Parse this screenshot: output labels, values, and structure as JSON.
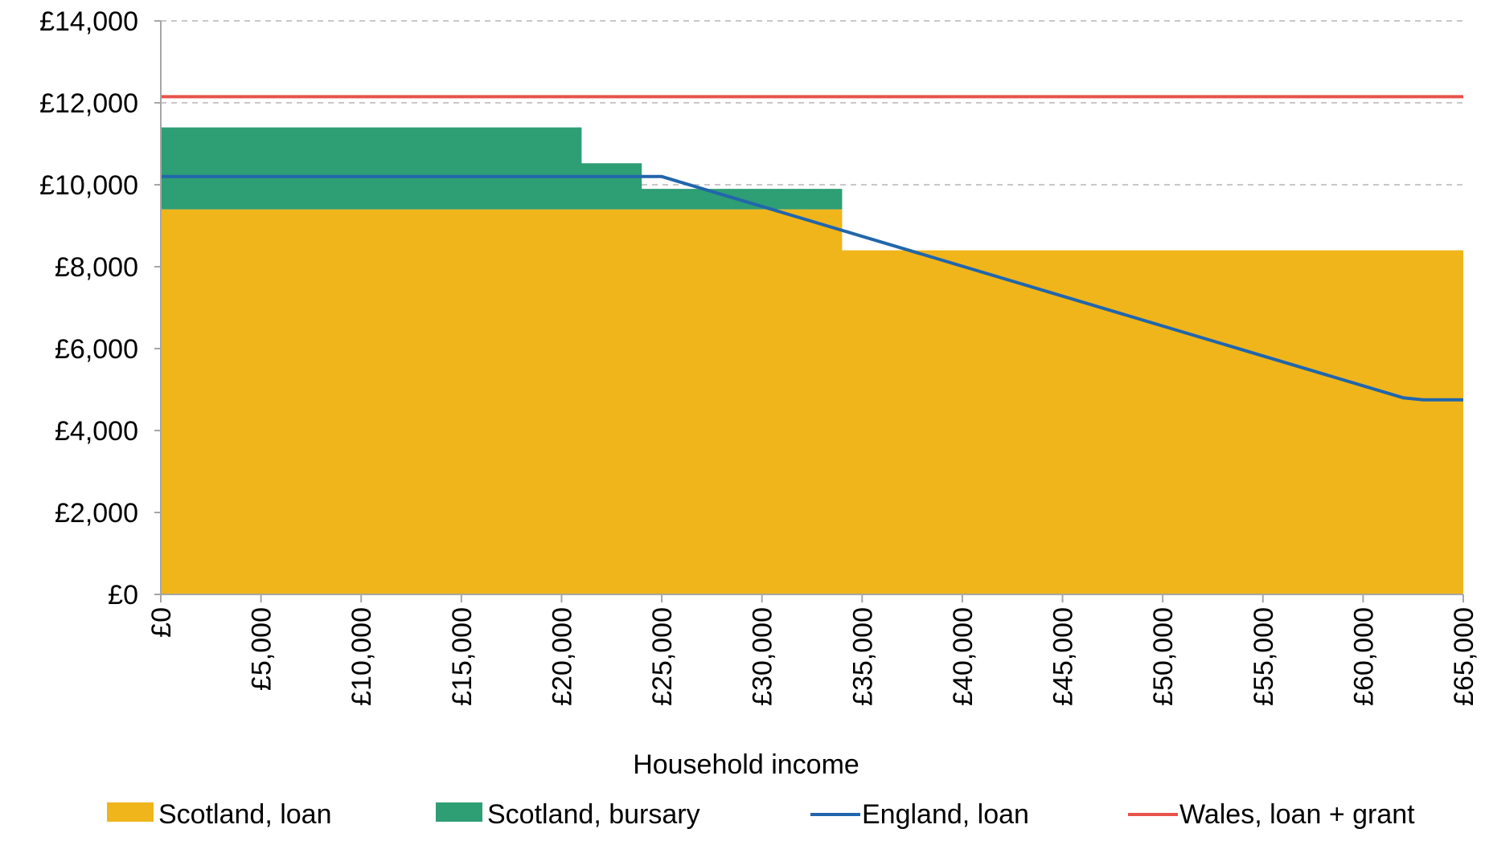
{
  "chart_data": {
    "type": "area",
    "title": "",
    "xlabel": "Household income",
    "ylabel": "",
    "xlim": [
      0,
      65000
    ],
    "ylim": [
      0,
      14000
    ],
    "grid": true,
    "legend_placement": "bottom",
    "yticks": [
      0,
      2000,
      4000,
      6000,
      8000,
      10000,
      12000,
      14000
    ],
    "ytick_labels": [
      "£0",
      "£2,000",
      "£4,000",
      "£6,000",
      "£8,000",
      "£10,000",
      "£12,000",
      "£14,000"
    ],
    "xticks": [
      0,
      5000,
      10000,
      15000,
      20000,
      25000,
      30000,
      35000,
      40000,
      45000,
      50000,
      55000,
      60000,
      65000
    ],
    "xtick_labels": [
      "£0",
      "£5,000",
      "£10,000",
      "£15,000",
      "£20,000",
      "£25,000",
      "£30,000",
      "£35,000",
      "£40,000",
      "£45,000",
      "£50,000",
      "£55,000",
      "£60,000",
      "£65,000"
    ],
    "series": [
      {
        "name": "Scotland, loan",
        "kind": "stacked-area",
        "color": "#F0B51B",
        "x": [
          0,
          34000,
          34000,
          65000
        ],
        "y": [
          9400,
          9400,
          8400,
          8400
        ]
      },
      {
        "name": "Scotland, bursary",
        "kind": "stacked-area",
        "color": "#2E9E74",
        "x": [
          0,
          21000,
          21000,
          24000,
          24000,
          34000,
          34000,
          65000
        ],
        "y": [
          2000,
          2000,
          1125,
          1125,
          500,
          500,
          0,
          0
        ]
      },
      {
        "name": "England, loan",
        "kind": "line",
        "color": "#2166AC",
        "x": [
          0,
          25000,
          62000,
          63000,
          65000
        ],
        "y": [
          10200,
          10200,
          4800,
          4750,
          4750
        ]
      },
      {
        "name": "Wales, loan + grant",
        "kind": "line",
        "color": "#E8534A",
        "x": [
          0,
          65000
        ],
        "y": [
          12150,
          12150
        ]
      }
    ]
  }
}
